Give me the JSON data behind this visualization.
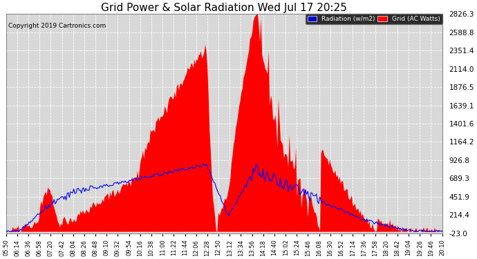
{
  "title": "Grid Power & Solar Radiation Wed Jul 17 20:25",
  "copyright": "Copyright 2019 Cartronics.com",
  "background_color": "#ffffff",
  "plot_bg_color": "#d8d8d8",
  "grid_color": "#ffffff",
  "red_fill_color": "#ff0000",
  "blue_line_color": "#0000ff",
  "blue_legend_color": "#0000cc",
  "y_ticks": [
    -23.0,
    214.4,
    451.9,
    689.3,
    926.8,
    1164.2,
    1401.6,
    1639.1,
    1876.5,
    2114.0,
    2351.4,
    2588.8,
    2826.3
  ],
  "y_min": -23.0,
  "y_max": 2826.3,
  "legend_radiation_label": "Radiation (w/m2)",
  "legend_grid_label": "Grid (AC Watts)",
  "x_labels": [
    "05:50",
    "06:14",
    "06:36",
    "06:58",
    "07:20",
    "07:42",
    "08:04",
    "08:26",
    "08:48",
    "09:10",
    "09:32",
    "09:54",
    "10:16",
    "10:38",
    "11:00",
    "11:22",
    "11:44",
    "12:06",
    "12:28",
    "12:50",
    "13:12",
    "13:34",
    "13:56",
    "14:18",
    "14:40",
    "15:02",
    "15:24",
    "15:46",
    "16:08",
    "16:30",
    "16:52",
    "17:14",
    "17:36",
    "17:58",
    "18:20",
    "18:42",
    "19:04",
    "19:26",
    "19:46",
    "20:10"
  ]
}
